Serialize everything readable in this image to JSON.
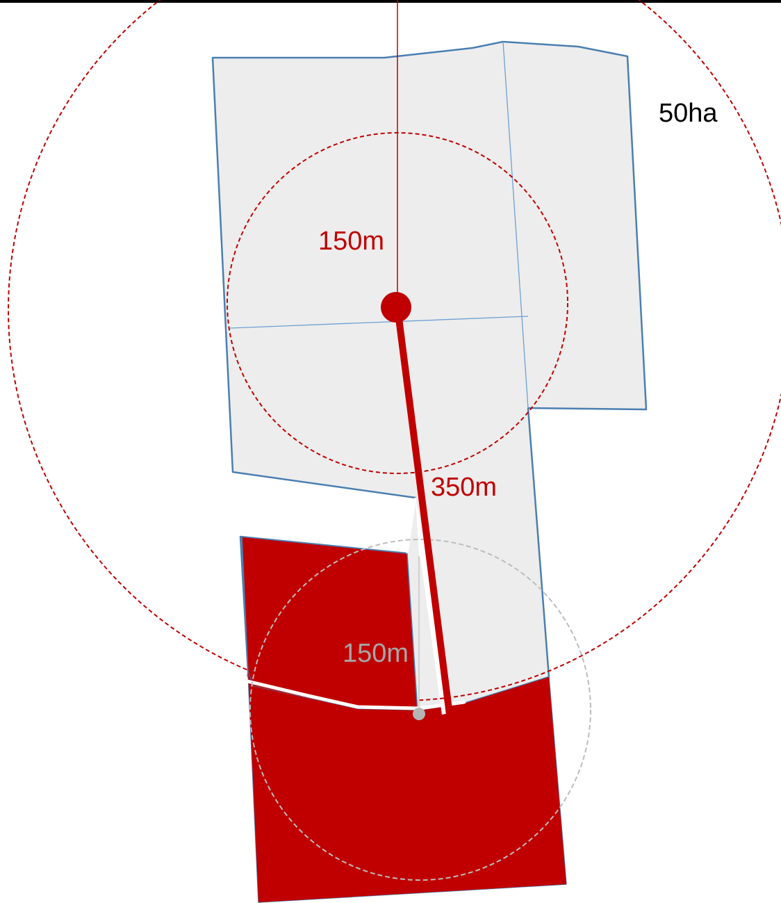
{
  "colors": {
    "parcel_fill": "#ededed",
    "parcel_stroke": "#4a7fb0",
    "grid_line": "#6ea0d4",
    "red": "#c00000",
    "grey_marker": "#b5b5b5",
    "grey_label": "#a6a6a6",
    "black_label": "#000000",
    "frame_line": "#000000"
  },
  "labels": {
    "large_circle_area": "50ha",
    "inner_radius_red": "150m",
    "path_distance": "350m",
    "inner_radius_grey": "150m"
  }
}
